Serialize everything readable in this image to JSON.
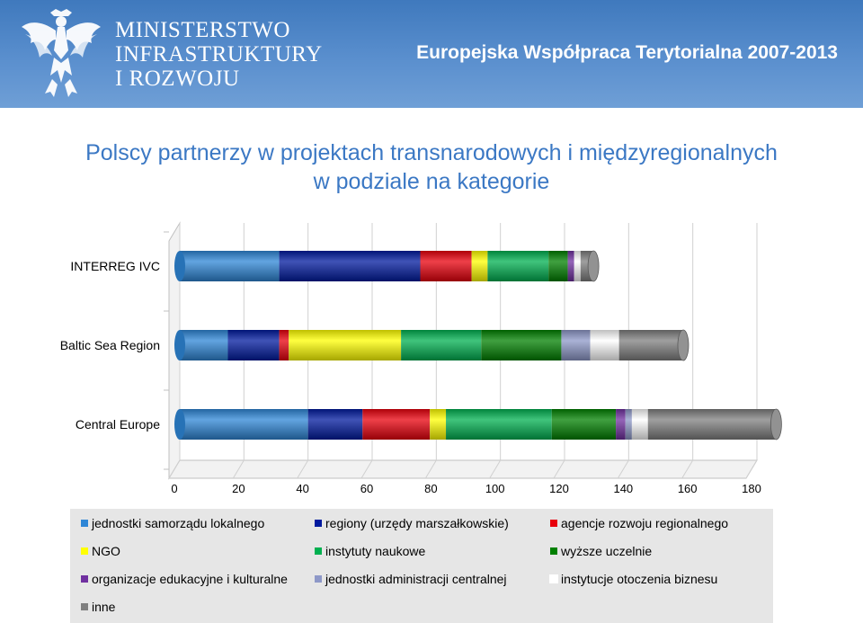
{
  "header": {
    "ministry_lines": [
      "MINISTERSTWO",
      "INFRASTRUKTURY",
      "I ROZWOJU"
    ],
    "program": "Europejska Współpraca Terytorialna 2007-2013",
    "emblem_icon": "polish-eagle-icon"
  },
  "slide_title": [
    "Polscy partnerzy w projektach transnarodowych i międzyregionalnych",
    "w podziale na kategorie"
  ],
  "chart_data": {
    "type": "bar",
    "orientation": "horizontal",
    "stacked": true,
    "style": "3d-cylinder",
    "categories": [
      "INTERREG IVC",
      "Baltic Sea Region",
      "Central Europe"
    ],
    "xlim": [
      0,
      180
    ],
    "xticks": [
      0,
      20,
      40,
      60,
      80,
      100,
      120,
      140,
      160,
      180
    ],
    "grid": true,
    "legend_position": "bottom",
    "series": [
      {
        "name": "jednostki samorządu lokalnego",
        "color": "#2e86d6",
        "values": [
          31,
          15,
          40
        ]
      },
      {
        "name": "regiony (urzędy marszałkowskie)",
        "color": "#001a9e",
        "values": [
          44,
          16,
          17
        ]
      },
      {
        "name": "agencje rozwoju regionalnego",
        "color": "#e8000c",
        "values": [
          16,
          3,
          21
        ]
      },
      {
        "name": "NGO",
        "color": "#ffff00",
        "values": [
          5,
          35,
          5
        ]
      },
      {
        "name": "instytuty naukowe",
        "color": "#00b050",
        "values": [
          19,
          25,
          33
        ]
      },
      {
        "name": "wyższe uczelnie",
        "color": "#008000",
        "values": [
          6,
          25,
          20
        ]
      },
      {
        "name": "organizacje edukacyjne i kulturalne",
        "color": "#7030a0",
        "values": [
          2,
          0,
          3
        ]
      },
      {
        "name": "jednostki administracji centralnej",
        "color": "#8e98c8",
        "values": [
          0,
          9,
          2
        ]
      },
      {
        "name": "instytucje otoczenia biznesu",
        "color": "#ffffff",
        "values": [
          2,
          9,
          5
        ]
      },
      {
        "name": "inne",
        "color": "#7f7f7f",
        "values": [
          4,
          20,
          40
        ]
      }
    ]
  }
}
